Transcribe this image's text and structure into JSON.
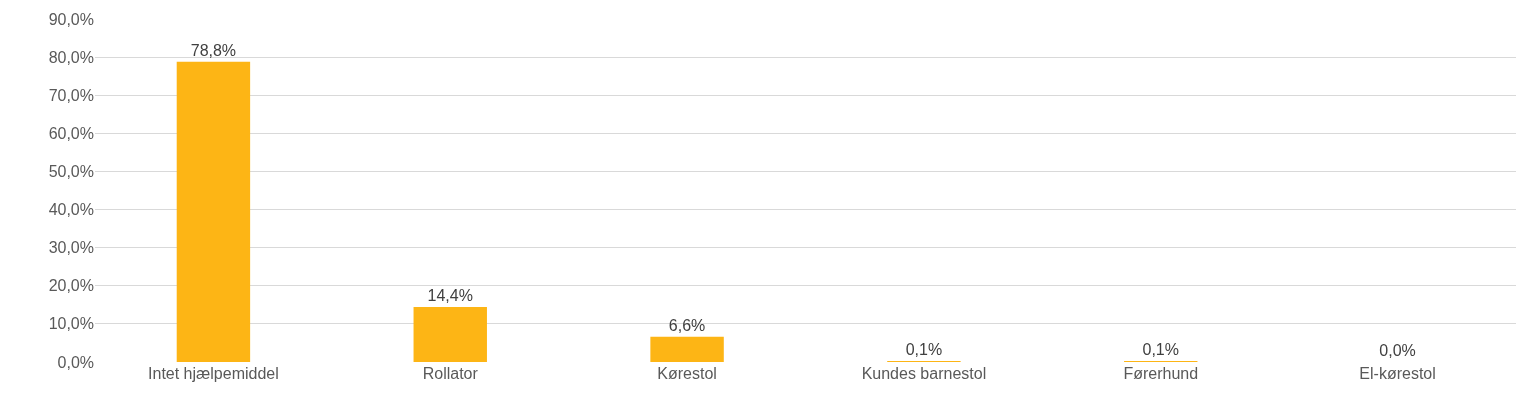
{
  "chart_data": {
    "type": "bar",
    "categories": [
      "Intet hjælpemiddel",
      "Rollator",
      "Kørestol",
      "Kundes barnestol",
      "Førerhund",
      "El-kørestol"
    ],
    "values": [
      78.8,
      14.4,
      6.6,
      0.1,
      0.1,
      0.0
    ],
    "value_labels": [
      "78,8%",
      "14,4%",
      "6,6%",
      "0,1%",
      "0,1%",
      "0,0%"
    ],
    "color": "#fdb515",
    "ylim": [
      0,
      90
    ],
    "yticks": [
      {
        "value": 0,
        "label": "0,0%"
      },
      {
        "value": 10,
        "label": "10,0%"
      },
      {
        "value": 20,
        "label": "20,0%"
      },
      {
        "value": 30,
        "label": "30,0%"
      },
      {
        "value": 40,
        "label": "40,0%"
      },
      {
        "value": 50,
        "label": "50,0%"
      },
      {
        "value": 60,
        "label": "60,0%"
      },
      {
        "value": 70,
        "label": "70,0%"
      },
      {
        "value": 80,
        "label": "80,0%"
      },
      {
        "value": 90,
        "label": "90,0%"
      }
    ],
    "grid": "y"
  }
}
